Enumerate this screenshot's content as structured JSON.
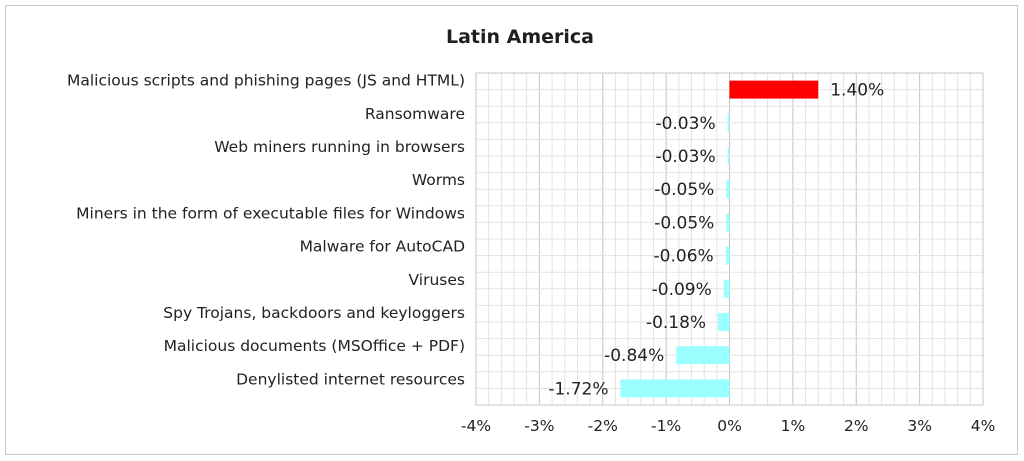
{
  "chart_data": {
    "type": "bar",
    "orientation": "horizontal",
    "title": "Latin America",
    "xlabel": "",
    "ylabel": "",
    "xlim": [
      -4,
      4
    ],
    "x_ticks": [
      {
        "value": -4,
        "label": "-4%"
      },
      {
        "value": -3,
        "label": "-3%"
      },
      {
        "value": -2,
        "label": "-2%"
      },
      {
        "value": -1,
        "label": "-1%"
      },
      {
        "value": 0,
        "label": "0%"
      },
      {
        "value": 1,
        "label": "1%"
      },
      {
        "value": 2,
        "label": "2%"
      },
      {
        "value": 3,
        "label": "3%"
      },
      {
        "value": 4,
        "label": "4%"
      }
    ],
    "grid": true,
    "legend": "none",
    "positive_color": "#ff0000",
    "negative_color": "#99ffff",
    "categories": [
      "Malicious scripts and phishing pages (JS and HTML)",
      "Ransomware",
      "Web miners running in browsers",
      "Worms",
      "Miners in the form of executable files for Windows",
      "Malware for AutoCAD",
      "Viruses",
      "Spy Trojans, backdoors and keyloggers",
      "Malicious documents (MSOffice + PDF)",
      "Denylisted internet resources"
    ],
    "values": [
      1.4,
      -0.03,
      -0.03,
      -0.05,
      -0.05,
      -0.06,
      -0.09,
      -0.18,
      -0.84,
      -1.72
    ],
    "value_labels": [
      "1.40%",
      "-0.03%",
      "-0.03%",
      "-0.05%",
      "-0.05%",
      "-0.06%",
      "-0.09%",
      "-0.18%",
      "-0.84%",
      "-1.72%"
    ]
  }
}
